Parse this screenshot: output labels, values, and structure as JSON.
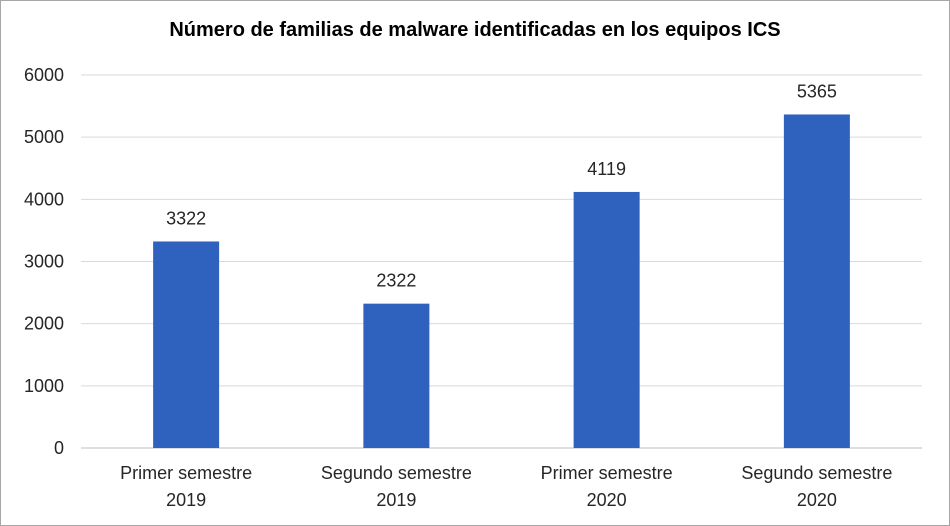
{
  "chart_data": {
    "type": "bar",
    "title": "Número de familias de malware identificadas en los equipos ICS",
    "categories": [
      [
        "Primer semestre",
        "2019"
      ],
      [
        "Segundo semestre",
        "2019"
      ],
      [
        "Primer semestre",
        "2020"
      ],
      [
        "Segundo semestre",
        "2020"
      ]
    ],
    "values": [
      3322,
      2322,
      4119,
      5365
    ],
    "data_labels": [
      "3322",
      "2322",
      "4119",
      "5365"
    ],
    "ylim": [
      0,
      6000
    ],
    "yticks": [
      0,
      1000,
      2000,
      3000,
      4000,
      5000,
      6000
    ],
    "ytick_labels": [
      "0",
      "1000",
      "2000",
      "3000",
      "4000",
      "5000",
      "6000"
    ],
    "grid": true,
    "legend": "none",
    "colors": {
      "bar": "#2e62be",
      "grid": "#d9d9d9",
      "text": "#262626"
    }
  }
}
